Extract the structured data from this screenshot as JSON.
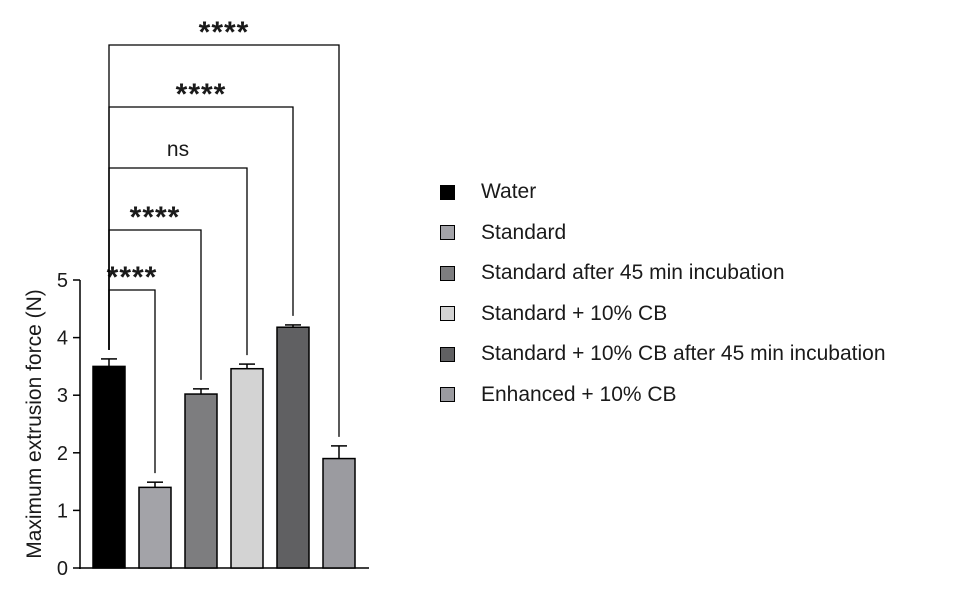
{
  "chart_data": {
    "type": "bar",
    "ylabel": "Maximum extrusion force (N)",
    "xlabel": "",
    "ylim": [
      0,
      5
    ],
    "yticks": [
      "0",
      "1",
      "2",
      "3",
      "4",
      "5"
    ],
    "categories": [
      "Water",
      "Standard",
      "Standard after 45 min incubation",
      "Standard + 10% CB",
      "Standard + 10% CB after 45 min incubation",
      "Enhanced + 10% CB"
    ],
    "values": [
      3.5,
      1.4,
      3.02,
      3.46,
      4.18,
      1.9
    ],
    "errors": [
      0.13,
      0.09,
      0.09,
      0.08,
      0.04,
      0.22
    ],
    "colors": [
      "#000000",
      "#a3a3a8",
      "#7d7d7f",
      "#d3d3d3",
      "#606062",
      "#9b9ba0"
    ],
    "legend_position": "right",
    "comparisons": [
      {
        "from": "Water",
        "to": "Standard",
        "label": "****"
      },
      {
        "from": "Water",
        "to": "Standard after 45 min incubation",
        "label": "****"
      },
      {
        "from": "Water",
        "to": "Standard + 10% CB",
        "label": "ns"
      },
      {
        "from": "Water",
        "to": "Standard + 10% CB after 45 min incubation",
        "label": "****"
      },
      {
        "from": "Water",
        "to": "Enhanced + 10% CB",
        "label": "****"
      }
    ]
  }
}
